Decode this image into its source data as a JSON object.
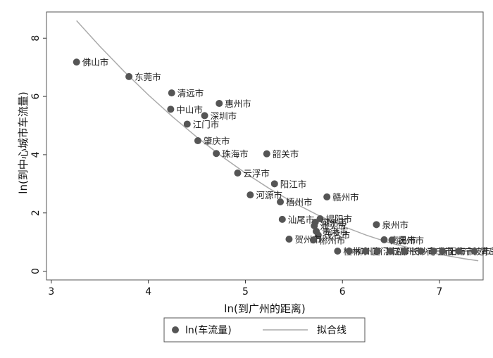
{
  "chart_data": {
    "type": "scatter",
    "xlabel": "ln(到广州的距离)",
    "ylabel": "ln(到中心城市车流量)",
    "xlim": [
      2.95,
      7.45
    ],
    "ylim": [
      -0.3,
      8.9
    ],
    "xticks": [
      "3",
      "4",
      "5",
      "6",
      "7"
    ],
    "yticks": [
      "0",
      "2",
      "4",
      "6",
      "8"
    ],
    "grid": false,
    "legend_position": "bottom",
    "colors": {
      "points": "#555555",
      "fit_line": "#aaaaaa"
    },
    "series": [
      {
        "name": "ln(车流量)",
        "kind": "scatter",
        "points": [
          {
            "x": 3.26,
            "y": 7.18,
            "label": "佛山市"
          },
          {
            "x": 3.8,
            "y": 6.68,
            "label": "东莞市"
          },
          {
            "x": 4.24,
            "y": 6.12,
            "label": "清远市"
          },
          {
            "x": 4.23,
            "y": 5.56,
            "label": "中山市"
          },
          {
            "x": 4.73,
            "y": 5.76,
            "label": "惠州市"
          },
          {
            "x": 4.58,
            "y": 5.34,
            "label": "深圳市"
          },
          {
            "x": 4.4,
            "y": 5.05,
            "label": "江门市"
          },
          {
            "x": 4.51,
            "y": 4.48,
            "label": "肇庆市"
          },
          {
            "x": 4.7,
            "y": 4.04,
            "label": "珠海市"
          },
          {
            "x": 5.22,
            "y": 4.03,
            "label": "韶关市"
          },
          {
            "x": 4.92,
            "y": 3.37,
            "label": "云浮市"
          },
          {
            "x": 5.3,
            "y": 3.0,
            "label": "阳江市"
          },
          {
            "x": 5.05,
            "y": 2.62,
            "label": "河源市"
          },
          {
            "x": 5.84,
            "y": 2.55,
            "label": "赣州市"
          },
          {
            "x": 5.36,
            "y": 2.38,
            "label": "梧州市"
          },
          {
            "x": 5.38,
            "y": 1.78,
            "label": "汕尾市"
          },
          {
            "x": 5.77,
            "y": 1.8,
            "label": "揭阳市"
          },
          {
            "x": 5.72,
            "y": 1.68,
            "label": "潮州市"
          },
          {
            "x": 5.71,
            "y": 1.56,
            "label": "汕头市"
          },
          {
            "x": 5.73,
            "y": 1.37,
            "label": "贵港市"
          },
          {
            "x": 5.75,
            "y": 1.24,
            "label": "茂名市"
          },
          {
            "x": 6.35,
            "y": 1.6,
            "label": "泉州市"
          },
          {
            "x": 6.43,
            "y": 1.08,
            "label": "南昌市"
          },
          {
            "x": 6.51,
            "y": 1.07,
            "label": "抚州市"
          },
          {
            "x": 5.45,
            "y": 1.1,
            "label": "贺州市"
          },
          {
            "x": 5.7,
            "y": 1.07,
            "label": "郴州市"
          },
          {
            "x": 5.95,
            "y": 0.69,
            "label": "桂林市"
          },
          {
            "x": 6.07,
            "y": 0.69,
            "label": "柳州市"
          },
          {
            "x": 6.24,
            "y": 0.69,
            "label": "厦门市"
          },
          {
            "x": 6.36,
            "y": 0.69,
            "label": "湛江市"
          },
          {
            "x": 6.5,
            "y": 0.69,
            "label": "福州市"
          },
          {
            "x": 6.64,
            "y": 0.69,
            "label": "长沙市"
          },
          {
            "x": 6.81,
            "y": 0.69,
            "label": "南宁市"
          },
          {
            "x": 6.94,
            "y": 0.69,
            "label": "衡阳市"
          },
          {
            "x": 7.03,
            "y": 0.69,
            "label": "上海市"
          },
          {
            "x": 7.2,
            "y": 0.69,
            "label": "宁波市"
          },
          {
            "x": 7.36,
            "y": 0.69,
            "label": "青岛市"
          }
        ]
      },
      {
        "name": "拟合线",
        "kind": "line",
        "x": [
          3.26,
          3.5,
          3.75,
          4.0,
          4.25,
          4.5,
          4.75,
          5.0,
          5.25,
          5.5,
          5.75,
          6.0,
          6.25,
          6.5,
          6.75,
          7.0,
          7.25,
          7.4
        ],
        "y": [
          8.6,
          7.72,
          6.86,
          6.05,
          5.3,
          4.6,
          3.96,
          3.37,
          2.83,
          2.35,
          1.92,
          1.55,
          1.23,
          0.96,
          0.75,
          0.58,
          0.43,
          0.36
        ]
      }
    ]
  }
}
